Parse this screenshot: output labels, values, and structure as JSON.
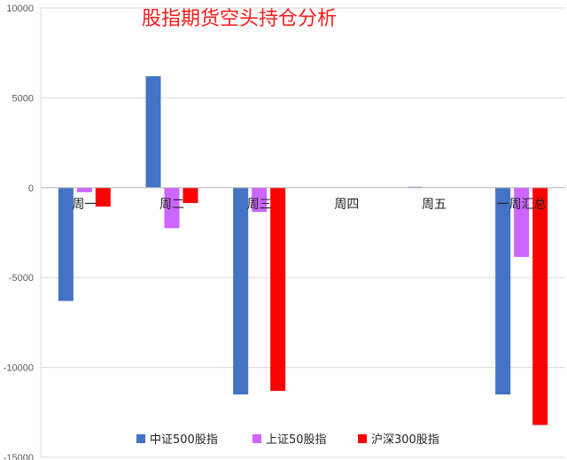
{
  "chart_data": {
    "type": "bar",
    "title": "股指期货空头持仓分析",
    "xlabel": "",
    "ylabel": "",
    "categories": [
      "周一",
      "周二",
      "周三",
      "周四",
      "周五",
      "一周汇总"
    ],
    "series": [
      {
        "name": "中证500股指",
        "color": "#4472c4",
        "values": [
          -6300,
          6200,
          -11500,
          0,
          50,
          -11500
        ]
      },
      {
        "name": "上证50股指",
        "color": "#cc66ff",
        "values": [
          -250,
          -2250,
          -1350,
          0,
          0,
          -3850
        ]
      },
      {
        "name": "沪深300股指",
        "color": "#ff0000",
        "values": [
          -1050,
          -850,
          -11300,
          0,
          0,
          -13200
        ]
      }
    ],
    "ylim": [
      -15000,
      10000
    ],
    "yticks": [
      10000,
      5000,
      0,
      -5000,
      -10000,
      -15000
    ],
    "grid": true,
    "legend_position": "bottom"
  }
}
